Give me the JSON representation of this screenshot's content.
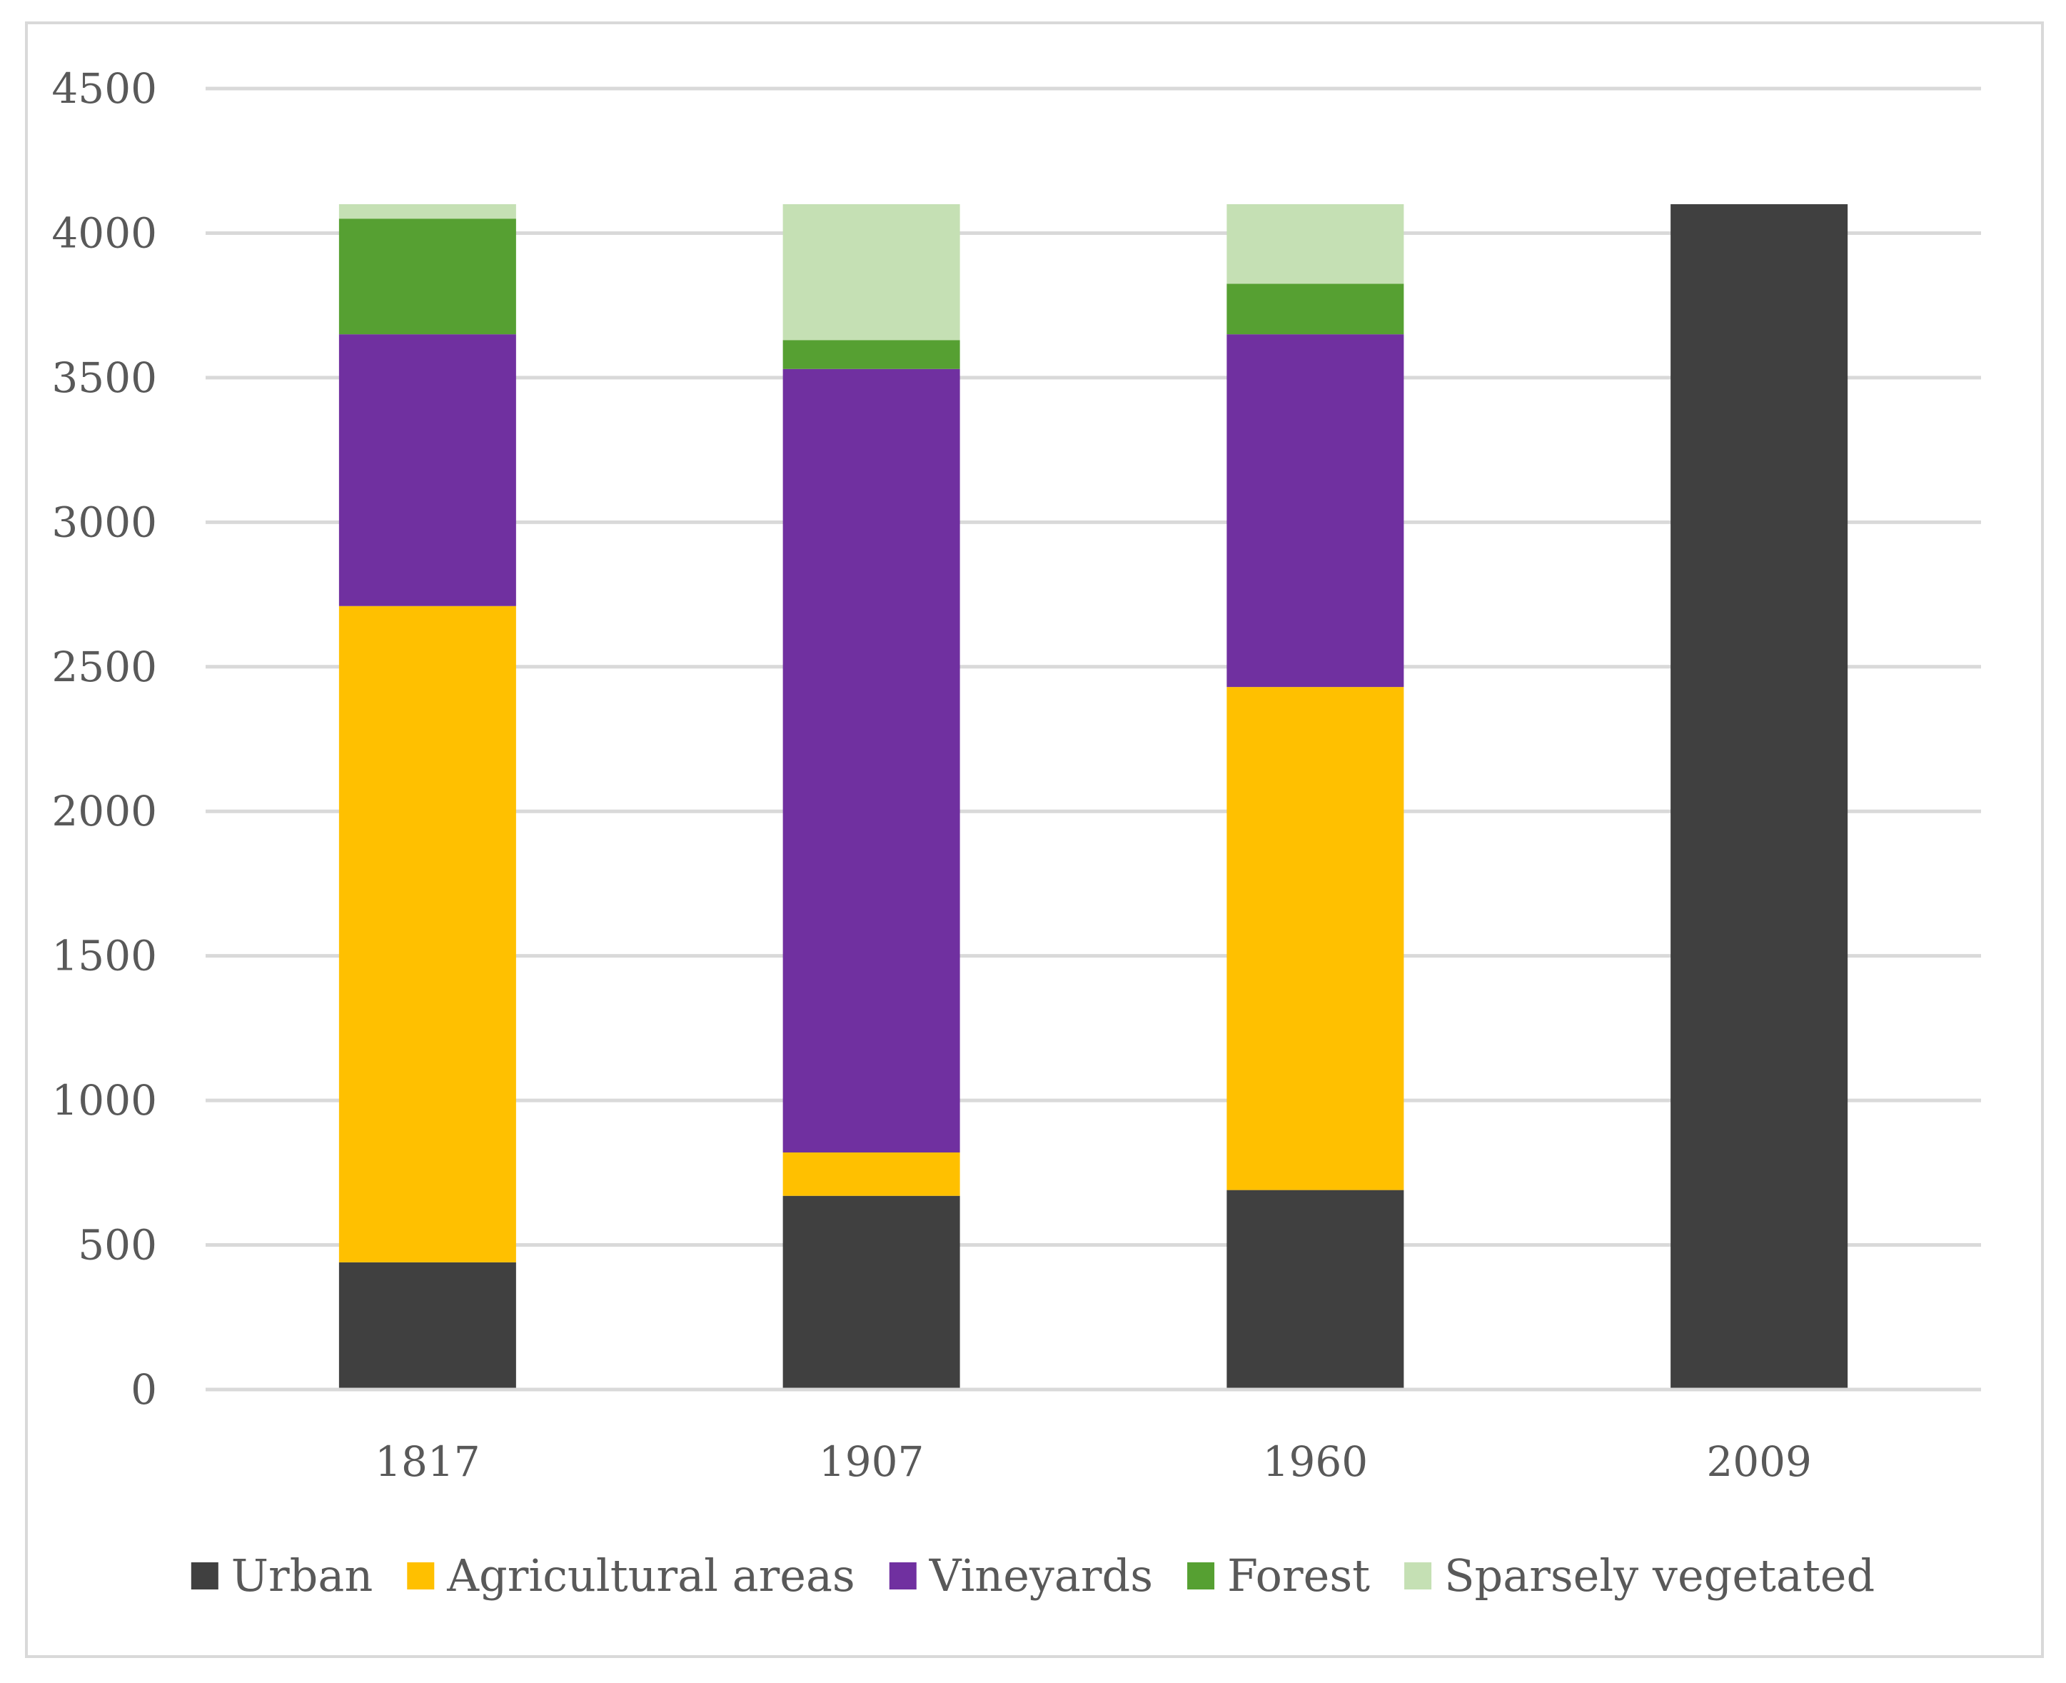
{
  "chart_data": {
    "type": "bar",
    "stacked": true,
    "categories": [
      "1817",
      "1907",
      "1960",
      "2009"
    ],
    "series": [
      {
        "name": "Urban",
        "color": "#404040",
        "values": [
          440,
          670,
          690,
          4100
        ]
      },
      {
        "name": "Agricultural areas",
        "color": "#ffc000",
        "values": [
          2270,
          150,
          1740,
          0
        ]
      },
      {
        "name": "Vineyards",
        "color": "#7030a0",
        "values": [
          940,
          2710,
          1220,
          0
        ]
      },
      {
        "name": "Forest",
        "color": "#56a032",
        "values": [
          400,
          100,
          175,
          0
        ]
      },
      {
        "name": "Sparsely vegetated",
        "color": "#c5e0b4",
        "values": [
          50,
          470,
          275,
          0
        ]
      }
    ],
    "ylim": [
      0,
      4500
    ],
    "yticks": [
      "0",
      "500",
      "1000",
      "1500",
      "2000",
      "2500",
      "3000",
      "3500",
      "4000",
      "4500"
    ],
    "grid": true,
    "legend_position": "bottom",
    "gridline_color": "#d9d9d9",
    "text_color": "#595959"
  }
}
